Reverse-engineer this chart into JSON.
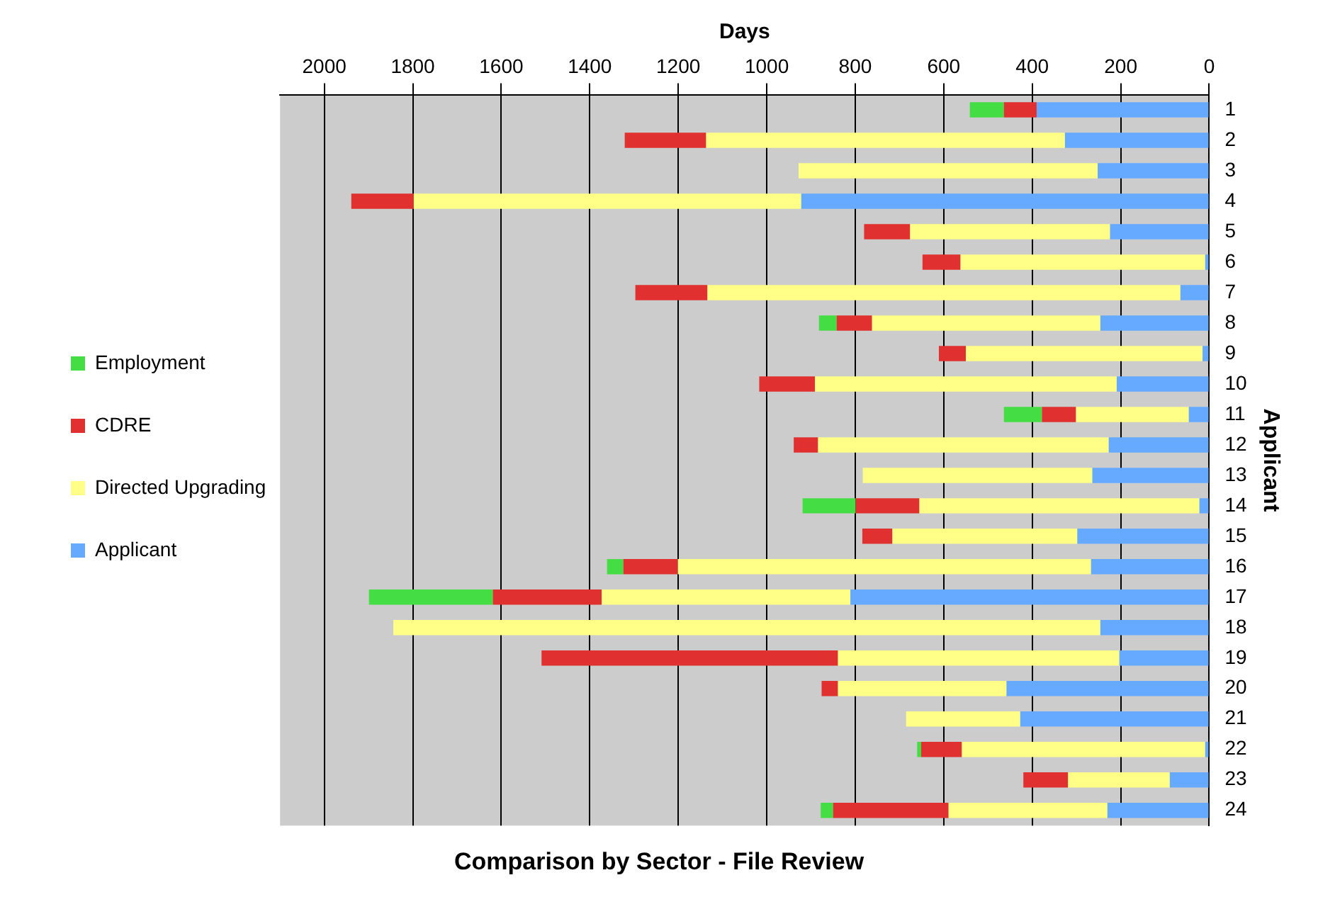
{
  "chart_data": {
    "type": "bar",
    "orientation": "horizontal",
    "stacked": true,
    "title": "Comparison by Sector - File Review",
    "xlabel": "Days",
    "ylabel": "Applicant",
    "categories": [
      "1",
      "2",
      "3",
      "4",
      "5",
      "6",
      "7",
      "8",
      "9",
      "10",
      "11",
      "12",
      "13",
      "14",
      "15",
      "16",
      "17",
      "18",
      "19",
      "20",
      "21",
      "22",
      "23",
      "24"
    ],
    "xlim": [
      2100,
      0
    ],
    "xticks": [
      0,
      200,
      400,
      600,
      800,
      1000,
      1200,
      1400,
      1600,
      1800,
      2000
    ],
    "grid": "x",
    "legend": "left",
    "series": [
      {
        "name": "Applicant",
        "color": "#66aaff",
        "values": [
          390,
          326,
          252,
          922,
          224,
          9,
          65,
          246,
          15,
          209,
          46,
          227,
          264,
          22,
          298,
          267,
          811,
          246,
          203,
          458,
          427,
          9,
          89,
          230
        ]
      },
      {
        "name": "Directed Upgrading",
        "color": "#ffff88",
        "values": [
          null,
          811,
          676,
          876,
          452,
          553,
          1069,
          516,
          535,
          682,
          255,
          657,
          519,
          633,
          418,
          934,
          562,
          1598,
          636,
          381,
          258,
          550,
          230,
          359
        ]
      },
      {
        "name": "CDRE",
        "color": "#e03030",
        "values": [
          74,
          184,
          null,
          141,
          104,
          86,
          163,
          80,
          61,
          126,
          77,
          55,
          null,
          144,
          68,
          123,
          246,
          null,
          670,
          37,
          null,
          92,
          101,
          261
        ]
      },
      {
        "name": "Employment",
        "color": "#44dd44",
        "values": [
          77,
          null,
          null,
          null,
          null,
          null,
          null,
          40,
          null,
          null,
          86,
          null,
          null,
          120,
          null,
          37,
          280,
          null,
          null,
          null,
          null,
          9,
          null,
          28
        ]
      }
    ]
  }
}
